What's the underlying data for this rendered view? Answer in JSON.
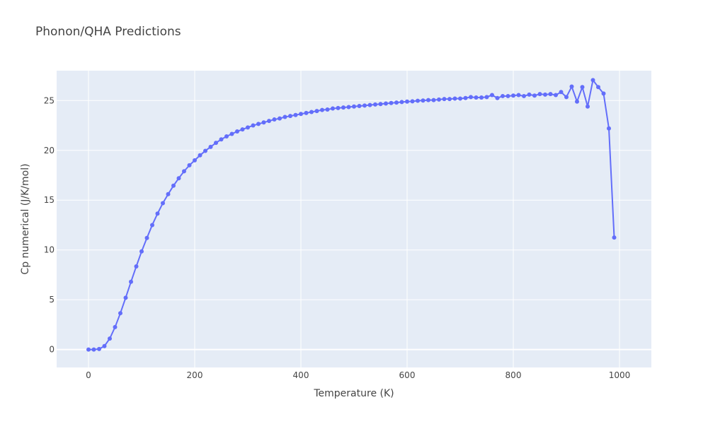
{
  "chart_data": {
    "type": "line",
    "title": "Phonon/QHA Predictions",
    "xlabel": "Temperature (K)",
    "ylabel": "Cp numerical (J/K/mol)",
    "xlim": [
      -60,
      1060
    ],
    "ylim": [
      -1.8,
      28.0
    ],
    "xticks": [
      0,
      200,
      400,
      600,
      800,
      1000
    ],
    "yticks": [
      0,
      5,
      10,
      15,
      20,
      25
    ],
    "grid": true,
    "legend": "none",
    "colors": {
      "series": "#636efa",
      "plot_bg": "#e5ecf6",
      "grid": "#ffffff",
      "text": "#444444"
    },
    "series": [
      {
        "x": [
          0,
          10,
          20,
          30,
          40,
          50,
          60,
          70,
          80,
          90,
          100,
          110,
          120,
          130,
          140,
          150,
          160,
          170,
          180,
          190,
          200,
          210,
          220,
          230,
          240,
          250,
          260,
          270,
          280,
          290,
          300,
          310,
          320,
          330,
          340,
          350,
          360,
          370,
          380,
          390,
          400,
          410,
          420,
          430,
          440,
          450,
          460,
          470,
          480,
          490,
          500,
          510,
          520,
          530,
          540,
          550,
          560,
          570,
          580,
          590,
          600,
          610,
          620,
          630,
          640,
          650,
          660,
          670,
          680,
          690,
          700,
          710,
          720,
          730,
          740,
          750,
          760,
          770,
          780,
          790,
          800,
          810,
          820,
          830,
          840,
          850,
          860,
          870,
          880,
          890,
          900,
          910,
          920,
          930,
          940,
          950,
          960,
          970,
          980,
          990
        ],
        "y": [
          0.0,
          0.0,
          0.05,
          0.35,
          1.1,
          2.25,
          3.65,
          5.2,
          6.8,
          8.35,
          9.85,
          11.2,
          12.5,
          13.65,
          14.7,
          15.6,
          16.45,
          17.2,
          17.9,
          18.5,
          19.0,
          19.5,
          19.95,
          20.35,
          20.75,
          21.1,
          21.4,
          21.65,
          21.9,
          22.1,
          22.3,
          22.5,
          22.65,
          22.8,
          22.95,
          23.1,
          23.2,
          23.35,
          23.45,
          23.55,
          23.65,
          23.75,
          23.85,
          23.95,
          24.05,
          24.1,
          24.2,
          24.25,
          24.3,
          24.35,
          24.4,
          24.45,
          24.5,
          24.55,
          24.6,
          24.65,
          24.7,
          24.75,
          24.8,
          24.85,
          24.9,
          24.92,
          24.98,
          25.0,
          25.05,
          25.05,
          25.1,
          25.15,
          25.15,
          25.2,
          25.2,
          25.25,
          25.35,
          25.3,
          25.3,
          25.35,
          25.55,
          25.25,
          25.45,
          25.45,
          25.5,
          25.55,
          25.45,
          25.6,
          25.5,
          25.65,
          25.6,
          25.65,
          25.55,
          25.85,
          25.35,
          26.4,
          24.9,
          26.35,
          24.4,
          27.05,
          26.35,
          25.7,
          22.2,
          11.25
        ]
      }
    ]
  }
}
